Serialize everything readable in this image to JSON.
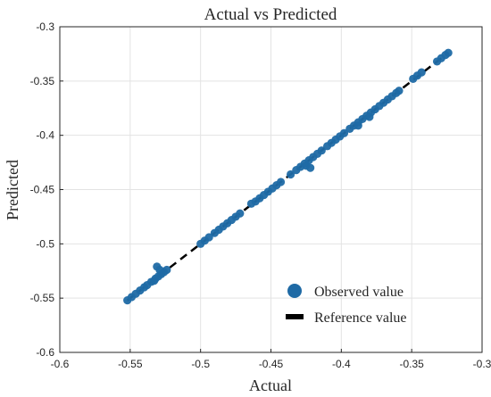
{
  "chart_data": {
    "type": "scatter",
    "title": "Actual vs Predicted",
    "xlabel": "Actual",
    "ylabel": "Predicted",
    "xlim": [
      -0.6,
      -0.3
    ],
    "ylim": [
      -0.6,
      -0.3
    ],
    "xticks": [
      -0.6,
      -0.55,
      -0.5,
      -0.45,
      -0.4,
      -0.35,
      -0.3
    ],
    "yticks": [
      -0.6,
      -0.55,
      -0.5,
      -0.45,
      -0.4,
      -0.35,
      -0.3
    ],
    "xtick_labels": [
      "-0.6",
      "-0.55",
      "-0.5",
      "-0.45",
      "-0.4",
      "-0.35",
      "-0.3"
    ],
    "ytick_labels": [
      "-0.6",
      "-0.55",
      "-0.5",
      "-0.45",
      "-0.4",
      "-0.35",
      "-0.3"
    ],
    "grid": true,
    "legend_position": "bottom-right",
    "series": [
      {
        "name": "Observed value",
        "kind": "scatter",
        "color": "#1f6aa5",
        "points": [
          [
            -0.552,
            -0.552
          ],
          [
            -0.549,
            -0.549
          ],
          [
            -0.546,
            -0.546
          ],
          [
            -0.543,
            -0.543
          ],
          [
            -0.54,
            -0.54
          ],
          [
            -0.538,
            -0.538
          ],
          [
            -0.535,
            -0.535
          ],
          [
            -0.532,
            -0.532
          ],
          [
            -0.53,
            -0.53
          ],
          [
            -0.528,
            -0.528
          ],
          [
            -0.526,
            -0.526
          ],
          [
            -0.524,
            -0.524
          ],
          [
            -0.531,
            -0.521
          ],
          [
            -0.529,
            -0.524
          ],
          [
            -0.533,
            -0.534
          ],
          [
            -0.5,
            -0.5
          ],
          [
            -0.497,
            -0.497
          ],
          [
            -0.494,
            -0.494
          ],
          [
            -0.49,
            -0.49
          ],
          [
            -0.487,
            -0.487
          ],
          [
            -0.484,
            -0.484
          ],
          [
            -0.481,
            -0.481
          ],
          [
            -0.478,
            -0.478
          ],
          [
            -0.475,
            -0.475
          ],
          [
            -0.472,
            -0.472
          ],
          [
            -0.464,
            -0.463
          ],
          [
            -0.461,
            -0.461
          ],
          [
            -0.458,
            -0.458
          ],
          [
            -0.455,
            -0.455
          ],
          [
            -0.452,
            -0.452
          ],
          [
            -0.449,
            -0.449
          ],
          [
            -0.446,
            -0.446
          ],
          [
            -0.443,
            -0.443
          ],
          [
            -0.436,
            -0.436
          ],
          [
            -0.432,
            -0.432
          ],
          [
            -0.429,
            -0.429
          ],
          [
            -0.426,
            -0.426
          ],
          [
            -0.423,
            -0.423
          ],
          [
            -0.42,
            -0.42
          ],
          [
            -0.417,
            -0.417
          ],
          [
            -0.414,
            -0.414
          ],
          [
            -0.425,
            -0.428
          ],
          [
            -0.422,
            -0.43
          ],
          [
            -0.41,
            -0.41
          ],
          [
            -0.407,
            -0.407
          ],
          [
            -0.404,
            -0.404
          ],
          [
            -0.401,
            -0.401
          ],
          [
            -0.398,
            -0.398
          ],
          [
            -0.394,
            -0.394
          ],
          [
            -0.391,
            -0.391
          ],
          [
            -0.388,
            -0.388
          ],
          [
            -0.385,
            -0.385
          ],
          [
            -0.382,
            -0.382
          ],
          [
            -0.379,
            -0.379
          ],
          [
            -0.376,
            -0.376
          ],
          [
            -0.373,
            -0.373
          ],
          [
            -0.37,
            -0.37
          ],
          [
            -0.367,
            -0.367
          ],
          [
            -0.364,
            -0.364
          ],
          [
            -0.361,
            -0.361
          ],
          [
            -0.359,
            -0.359
          ],
          [
            -0.388,
            -0.391
          ],
          [
            -0.38,
            -0.383
          ],
          [
            -0.349,
            -0.348
          ],
          [
            -0.346,
            -0.345
          ],
          [
            -0.343,
            -0.342
          ],
          [
            -0.332,
            -0.332
          ],
          [
            -0.329,
            -0.329
          ],
          [
            -0.326,
            -0.326
          ],
          [
            -0.324,
            -0.324
          ]
        ]
      },
      {
        "name": "Reference value",
        "kind": "line",
        "style": "dashed",
        "color": "#000000",
        "x": [
          -0.552,
          -0.324
        ],
        "y": [
          -0.552,
          -0.324
        ]
      }
    ]
  }
}
